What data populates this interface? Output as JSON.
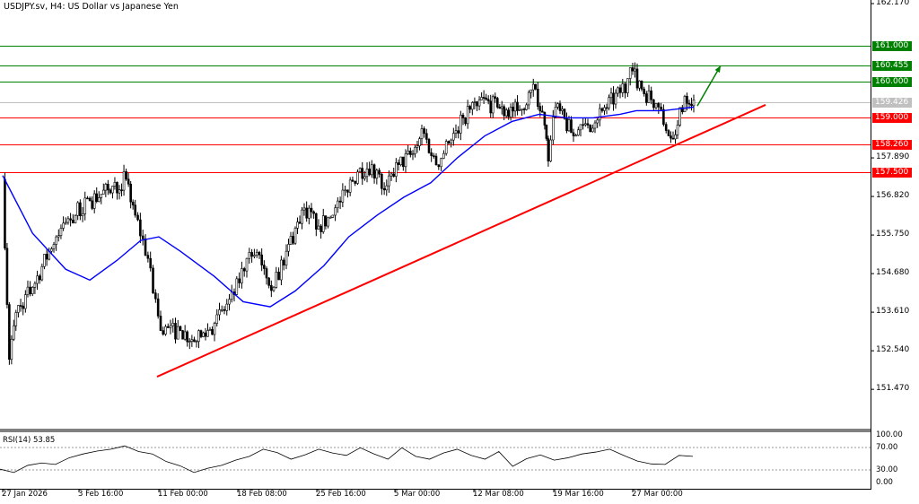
{
  "header": {
    "title": "USDJPY.sv, H4:  US Dollar vs Japanese Yen"
  },
  "colors": {
    "support_resistance_red": "#ff0000",
    "target_green": "#008000",
    "moving_average": "#0000ff",
    "current_price": "#c0c0c0",
    "trendline": "#ff0000"
  },
  "price_axis": {
    "ticks": [
      "162.170",
      "157.890",
      "156.820",
      "155.750",
      "154.680",
      "153.610",
      "152.540",
      "151.470"
    ]
  },
  "levels": [
    {
      "value": 161.0,
      "label": "161.000",
      "color": "#008000"
    },
    {
      "value": 160.455,
      "label": "160.455",
      "color": "#008000"
    },
    {
      "value": 160.0,
      "label": "160.000",
      "color": "#008000"
    },
    {
      "value": 159.426,
      "label": "159.426",
      "color": "#c0c0c0"
    },
    {
      "value": 159.0,
      "label": "159.000",
      "color": "#ff0000"
    },
    {
      "value": 158.26,
      "label": "158.260",
      "color": "#ff0000"
    },
    {
      "value": 157.5,
      "label": "157.500",
      "color": "#ff0000"
    }
  ],
  "time_axis": {
    "ticks": [
      {
        "label": "27 Jan 2026",
        "t": "2026-01-27T00:00"
      },
      {
        "label": "3 Feb 16:00",
        "t": "2026-02-03T16:00"
      },
      {
        "label": "11 Feb 00:00",
        "t": "2026-02-11T00:00"
      },
      {
        "label": "18 Feb 08:00",
        "t": "2026-02-18T08:00"
      },
      {
        "label": "25 Feb 16:00",
        "t": "2026-02-25T16:00"
      },
      {
        "label": "5 Mar 00:00",
        "t": "2026-03-05T00:00"
      },
      {
        "label": "12 Mar 08:00",
        "t": "2026-03-12T08:00"
      },
      {
        "label": "19 Mar 16:00",
        "t": "2026-03-19T16:00"
      },
      {
        "label": "27 Mar 00:00",
        "t": "2026-03-27T00:00"
      }
    ]
  },
  "rsi": {
    "label": "RSI(14) 53.85",
    "levels": [
      "100.00",
      "70.00",
      "30.00",
      "0.00"
    ],
    "values": [
      28,
      21,
      36,
      41,
      38,
      52,
      60,
      66,
      70,
      77,
      65,
      60,
      44,
      35,
      21,
      30,
      36,
      47,
      55,
      70,
      63,
      49,
      58,
      70,
      62,
      57,
      73,
      60,
      49,
      73,
      55,
      49,
      62,
      70,
      57,
      49,
      65,
      34,
      50,
      58,
      47,
      52,
      60,
      64,
      70,
      57,
      45,
      39,
      38,
      57,
      55
    ]
  },
  "chart_data": {
    "type": "candlestick",
    "symbol": "USDJPY.sv",
    "timeframe": "H4",
    "ylim": [
      151.0,
      162.3
    ],
    "price_path": [
      {
        "t": "2026-01-27T00:00",
        "close": 157.3
      },
      {
        "t": "2026-01-27T16:00",
        "close": 152.3
      },
      {
        "t": "2026-01-28T08:00",
        "close": 153.6
      },
      {
        "t": "2026-01-30T00:00",
        "close": 154.3
      },
      {
        "t": "2026-01-31T16:00",
        "close": 155.3
      },
      {
        "t": "2026-02-02T08:00",
        "close": 156.1
      },
      {
        "t": "2026-02-04T16:00",
        "close": 156.7
      },
      {
        "t": "2026-02-06T08:00",
        "close": 157.0
      },
      {
        "t": "2026-02-08T00:00",
        "close": 157.3
      },
      {
        "t": "2026-02-08T20:00",
        "close": 156.3
      },
      {
        "t": "2026-02-10T00:00",
        "close": 155.1
      },
      {
        "t": "2026-02-11T04:00",
        "close": 153.1
      },
      {
        "t": "2026-02-13T00:00",
        "close": 153.1
      },
      {
        "t": "2026-02-14T12:00",
        "close": 152.8
      },
      {
        "t": "2026-02-16T04:00",
        "close": 153.3
      },
      {
        "t": "2026-02-18T00:00",
        "close": 154.1
      },
      {
        "t": "2026-02-19T04:00",
        "close": 155.1
      },
      {
        "t": "2026-02-20T08:00",
        "close": 155.2
      },
      {
        "t": "2026-02-21T16:00",
        "close": 154.3
      },
      {
        "t": "2026-02-22T20:00",
        "close": 155.3
      },
      {
        "t": "2026-02-24T12:00",
        "close": 156.5
      },
      {
        "t": "2026-02-25T20:00",
        "close": 156.0
      },
      {
        "t": "2026-02-27T04:00",
        "close": 156.3
      },
      {
        "t": "2026-02-28T08:00",
        "close": 157.0
      },
      {
        "t": "2026-03-01T12:00",
        "close": 157.5
      },
      {
        "t": "2026-03-02T20:00",
        "close": 157.7
      },
      {
        "t": "2026-03-04T00:00",
        "close": 157.0
      },
      {
        "t": "2026-03-05T08:00",
        "close": 157.7
      },
      {
        "t": "2026-03-06T16:00",
        "close": 158.0
      },
      {
        "t": "2026-03-07T12:00",
        "close": 158.7
      },
      {
        "t": "2026-03-08T20:00",
        "close": 157.7
      },
      {
        "t": "2026-03-10T00:00",
        "close": 158.3
      },
      {
        "t": "2026-03-11T08:00",
        "close": 159.0
      },
      {
        "t": "2026-03-12T20:00",
        "close": 159.5
      },
      {
        "t": "2026-03-14T12:00",
        "close": 159.3
      },
      {
        "t": "2026-03-16T08:00",
        "close": 159.2
      },
      {
        "t": "2026-03-18T00:00",
        "close": 159.8
      },
      {
        "t": "2026-03-18T20:00",
        "close": 158.8
      },
      {
        "t": "2026-03-19T04:00",
        "close": 157.8
      },
      {
        "t": "2026-03-19T20:00",
        "close": 159.3
      },
      {
        "t": "2026-03-21T12:00",
        "close": 158.5
      },
      {
        "t": "2026-03-22T20:00",
        "close": 158.8
      },
      {
        "t": "2026-03-24T04:00",
        "close": 159.2
      },
      {
        "t": "2026-03-25T20:00",
        "close": 159.7
      },
      {
        "t": "2026-03-27T00:00",
        "close": 160.3
      },
      {
        "t": "2026-03-27T20:00",
        "close": 159.8
      },
      {
        "t": "2026-03-29T04:00",
        "close": 159.4
      },
      {
        "t": "2026-03-30T08:00",
        "close": 158.5
      },
      {
        "t": "2026-03-31T04:00",
        "close": 158.8
      },
      {
        "t": "2026-03-31T20:00",
        "close": 159.6
      },
      {
        "t": "2026-04-01T16:00",
        "close": 159.5
      }
    ],
    "moving_average": [
      {
        "t": "2026-01-27T00:00",
        "v": 157.4
      },
      {
        "t": "2026-01-30T00:00",
        "v": 155.8
      },
      {
        "t": "2026-02-02T08:00",
        "v": 154.8
      },
      {
        "t": "2026-02-04T16:00",
        "v": 154.5
      },
      {
        "t": "2026-02-07T04:00",
        "v": 155.05
      },
      {
        "t": "2026-02-09T08:00",
        "v": 155.6
      },
      {
        "t": "2026-02-11T00:00",
        "v": 155.7
      },
      {
        "t": "2026-02-13T00:00",
        "v": 155.3
      },
      {
        "t": "2026-02-16T04:00",
        "v": 154.6
      },
      {
        "t": "2026-02-18T20:00",
        "v": 153.9
      },
      {
        "t": "2026-02-21T08:00",
        "v": 153.76
      },
      {
        "t": "2026-02-23T16:00",
        "v": 154.2
      },
      {
        "t": "2026-02-26T08:00",
        "v": 154.9
      },
      {
        "t": "2026-02-28T16:00",
        "v": 155.7
      },
      {
        "t": "2026-03-03T08:00",
        "v": 156.3
      },
      {
        "t": "2026-03-05T20:00",
        "v": 156.8
      },
      {
        "t": "2026-03-08T08:00",
        "v": 157.2
      },
      {
        "t": "2026-03-10T20:00",
        "v": 157.9
      },
      {
        "t": "2026-03-13T08:00",
        "v": 158.5
      },
      {
        "t": "2026-03-15T20:00",
        "v": 158.9
      },
      {
        "t": "2026-03-18T08:00",
        "v": 159.1
      },
      {
        "t": "2026-03-20T20:00",
        "v": 159.0
      },
      {
        "t": "2026-03-23T08:00",
        "v": 159.0
      },
      {
        "t": "2026-03-25T20:00",
        "v": 159.1
      },
      {
        "t": "2026-03-27T08:00",
        "v": 159.2
      },
      {
        "t": "2026-03-29T20:00",
        "v": 159.2
      },
      {
        "t": "2026-04-01T16:00",
        "v": 159.3
      }
    ],
    "trendline": [
      {
        "t": "2026-02-10T20:00",
        "v": 151.82
      },
      {
        "t": "2026-04-08T08:00",
        "v": 159.36
      }
    ],
    "projection_arrow": [
      {
        "t": "2026-04-02T00:00",
        "v": 159.33
      },
      {
        "t": "2026-04-04T04:00",
        "v": 160.45
      }
    ]
  }
}
